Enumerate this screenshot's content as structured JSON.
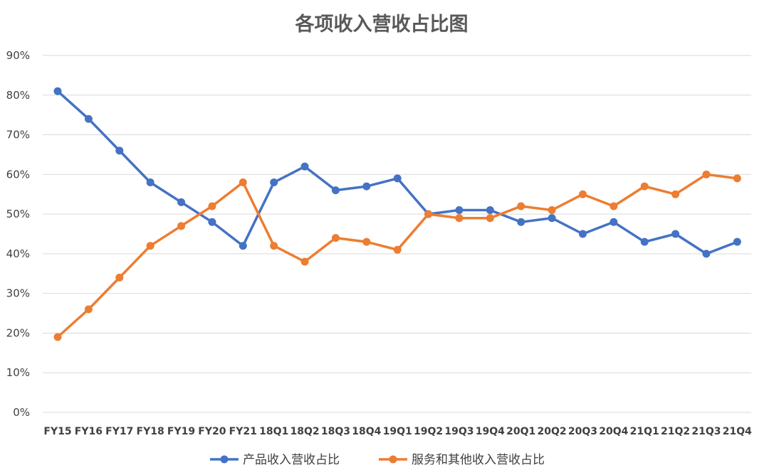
{
  "chart_data": {
    "type": "line",
    "title": "各项收入营收占比图",
    "xlabel": "",
    "ylabel": "",
    "ylim": [
      0,
      90
    ],
    "y_tick_labels": [
      "0%",
      "10%",
      "20%",
      "30%",
      "40%",
      "50%",
      "60%",
      "70%",
      "80%",
      "90%"
    ],
    "grid": true,
    "legend_position": "bottom",
    "categories": [
      "FY15",
      "FY16",
      "FY17",
      "FY18",
      "FY19",
      "FY20",
      "FY21",
      "18Q1",
      "18Q2",
      "18Q3",
      "18Q4",
      "19Q1",
      "19Q2",
      "19Q3",
      "19Q4",
      "20Q1",
      "20Q2",
      "20Q3",
      "20Q4",
      "21Q1",
      "21Q2",
      "21Q3",
      "21Q4"
    ],
    "series": [
      {
        "name": "产品收入营收占比",
        "color": "#4472c4",
        "values": [
          81,
          74,
          66,
          58,
          53,
          48,
          42,
          58,
          62,
          56,
          57,
          59,
          50,
          51,
          51,
          48,
          49,
          45,
          48,
          43,
          45,
          40,
          43
        ]
      },
      {
        "name": "服务和其他收入营收占比",
        "color": "#ed7d31",
        "values": [
          19,
          26,
          34,
          42,
          47,
          52,
          58,
          42,
          38,
          44,
          43,
          41,
          50,
          49,
          49,
          52,
          51,
          55,
          52,
          57,
          55,
          60,
          59
        ]
      }
    ]
  }
}
